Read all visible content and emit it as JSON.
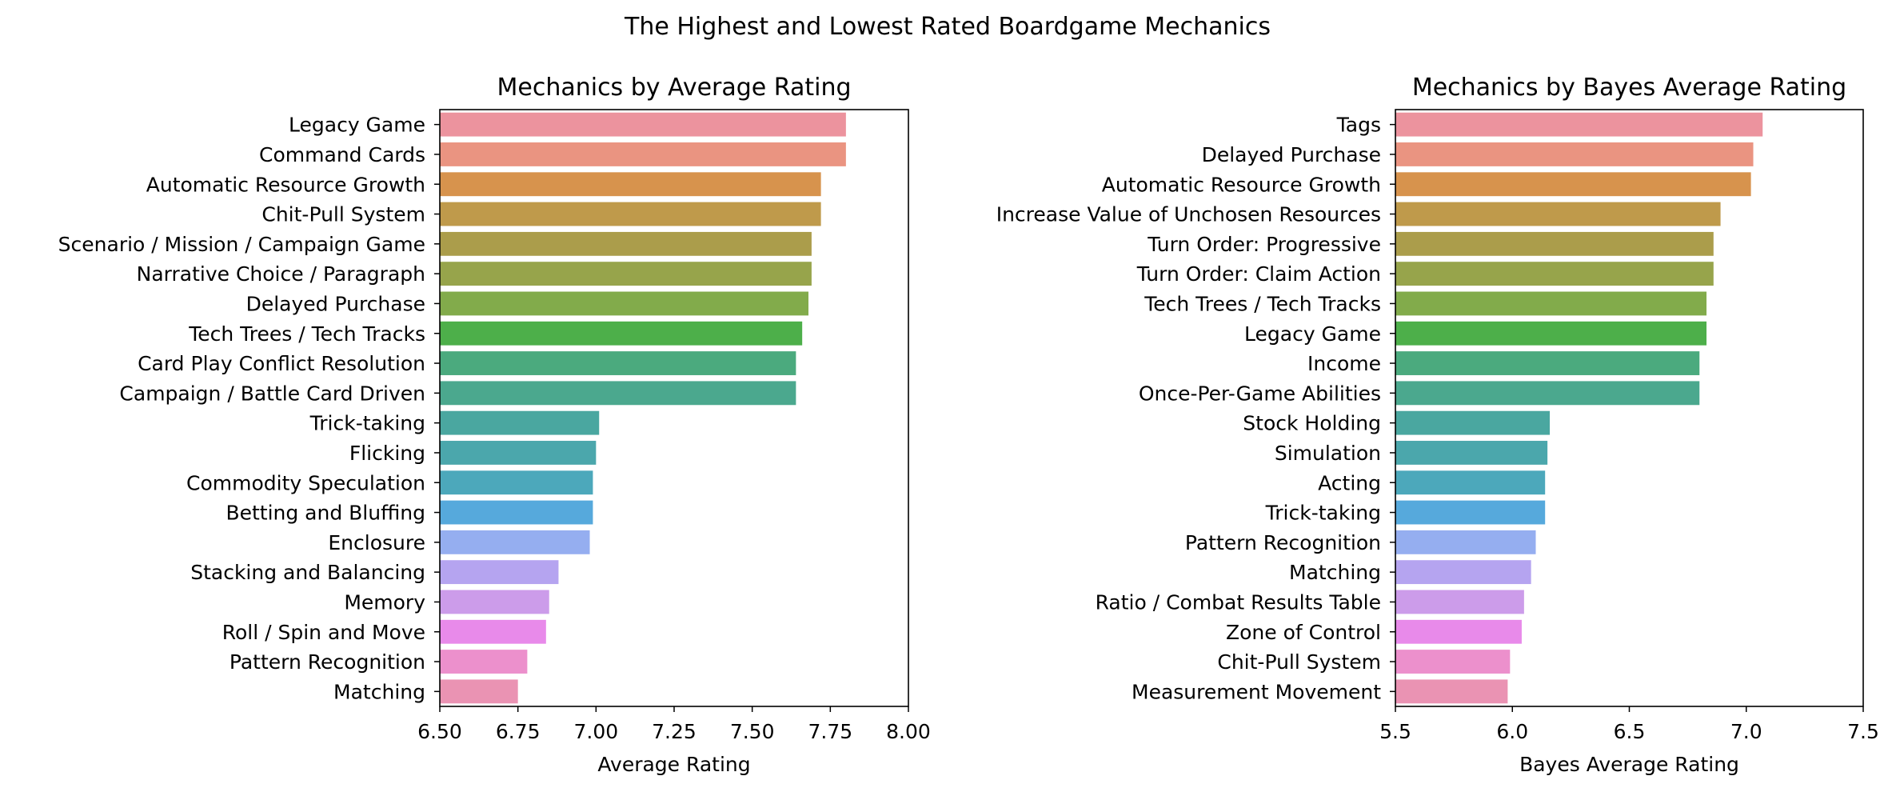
{
  "figure_title": "The Highest and Lowest Rated Boardgame Mechanics",
  "chart_data": [
    {
      "type": "bar",
      "orientation": "horizontal",
      "title": "Mechanics by Average Rating",
      "xlabel": "Average Rating",
      "ylabel": "",
      "xlim": [
        6.5,
        8.0
      ],
      "xticks": [
        "6.50",
        "6.75",
        "7.00",
        "7.25",
        "7.50",
        "7.75",
        "8.00"
      ],
      "grid": false,
      "categories": [
        "Legacy Game",
        "Command Cards",
        "Automatic Resource Growth",
        "Chit-Pull System",
        "Scenario / Mission / Campaign Game",
        "Narrative Choice / Paragraph",
        "Delayed Purchase",
        "Tech Trees / Tech Tracks",
        "Card Play Conflict Resolution",
        "Campaign / Battle Card Driven",
        "Trick-taking",
        "Flicking",
        "Commodity Speculation",
        "Betting and Bluffing",
        "Enclosure",
        "Stacking and Balancing",
        "Memory",
        "Roll / Spin and Move",
        "Pattern Recognition",
        "Matching"
      ],
      "values": [
        7.8,
        7.8,
        7.72,
        7.72,
        7.69,
        7.69,
        7.68,
        7.66,
        7.64,
        7.64,
        7.01,
        7.0,
        6.99,
        6.99,
        6.98,
        6.88,
        6.85,
        6.84,
        6.78,
        6.75
      ]
    },
    {
      "type": "bar",
      "orientation": "horizontal",
      "title": "Mechanics by Bayes Average Rating",
      "xlabel": "Bayes Average Rating",
      "ylabel": "",
      "xlim": [
        5.5,
        7.5
      ],
      "xticks": [
        "5.5",
        "6.0",
        "6.5",
        "7.0",
        "7.5"
      ],
      "grid": false,
      "categories": [
        "Tags",
        "Delayed Purchase",
        "Automatic Resource Growth",
        "Increase Value of Unchosen Resources",
        "Turn Order: Progressive",
        "Turn Order: Claim Action",
        "Tech Trees / Tech Tracks",
        "Legacy Game",
        "Income",
        "Once-Per-Game Abilities",
        "Stock Holding",
        "Simulation",
        "Acting",
        "Trick-taking",
        "Pattern Recognition",
        "Matching",
        "Ratio / Combat Results Table",
        "Zone of Control",
        "Chit-Pull System",
        "Measurement Movement"
      ],
      "values": [
        7.07,
        7.03,
        7.02,
        6.89,
        6.86,
        6.86,
        6.83,
        6.83,
        6.8,
        6.8,
        6.16,
        6.15,
        6.14,
        6.14,
        6.1,
        6.08,
        6.05,
        6.04,
        5.99,
        5.98
      ]
    }
  ],
  "palette": [
    "#ec939e",
    "#ea9481",
    "#d7934d",
    "#bf9a4b",
    "#ab9d4b",
    "#97a44b",
    "#82ab4b",
    "#4daf4a",
    "#4baa7e",
    "#4ba88e",
    "#4aa7a0",
    "#4ba7ac",
    "#4ca8bb",
    "#56a9dc",
    "#95aef0",
    "#b5a4f0",
    "#cc9cea",
    "#e88aea",
    "#ec90cc",
    "#ea93b3"
  ]
}
